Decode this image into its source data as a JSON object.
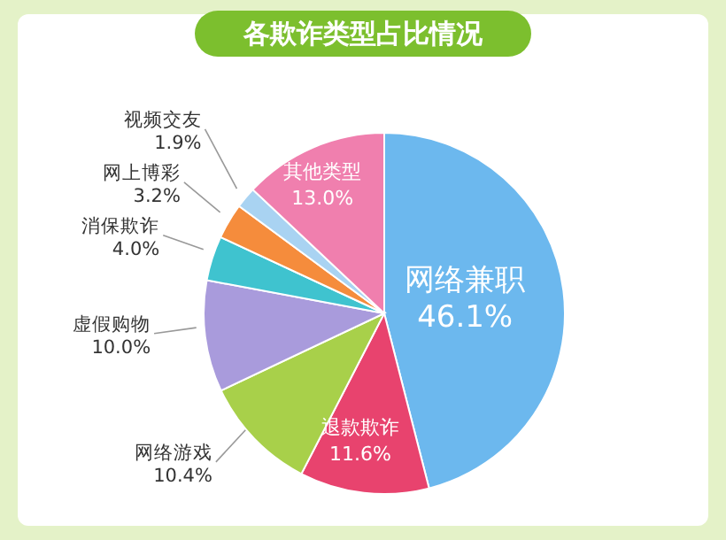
{
  "chart_data": {
    "type": "pie",
    "title": "各欺诈类型占比情况",
    "categories": [
      "网络兼职",
      "退款欺诈",
      "网络游戏",
      "虚假购物",
      "消保欺诈",
      "网上博彩",
      "视频交友",
      "其他类型"
    ],
    "values": [
      46.1,
      11.6,
      10.4,
      10.0,
      4.0,
      3.2,
      1.9,
      13.0
    ],
    "value_labels": [
      "46.1%",
      "11.6%",
      "10.4%",
      "10.0%",
      "4.0%",
      "3.2%",
      "1.9%",
      "13.0%"
    ],
    "colors": [
      "#6cb8ee",
      "#e8436e",
      "#a8d04a",
      "#a99bdc",
      "#3fc3cf",
      "#f58c3c",
      "#a9d3f2",
      "#f07fae"
    ]
  }
}
